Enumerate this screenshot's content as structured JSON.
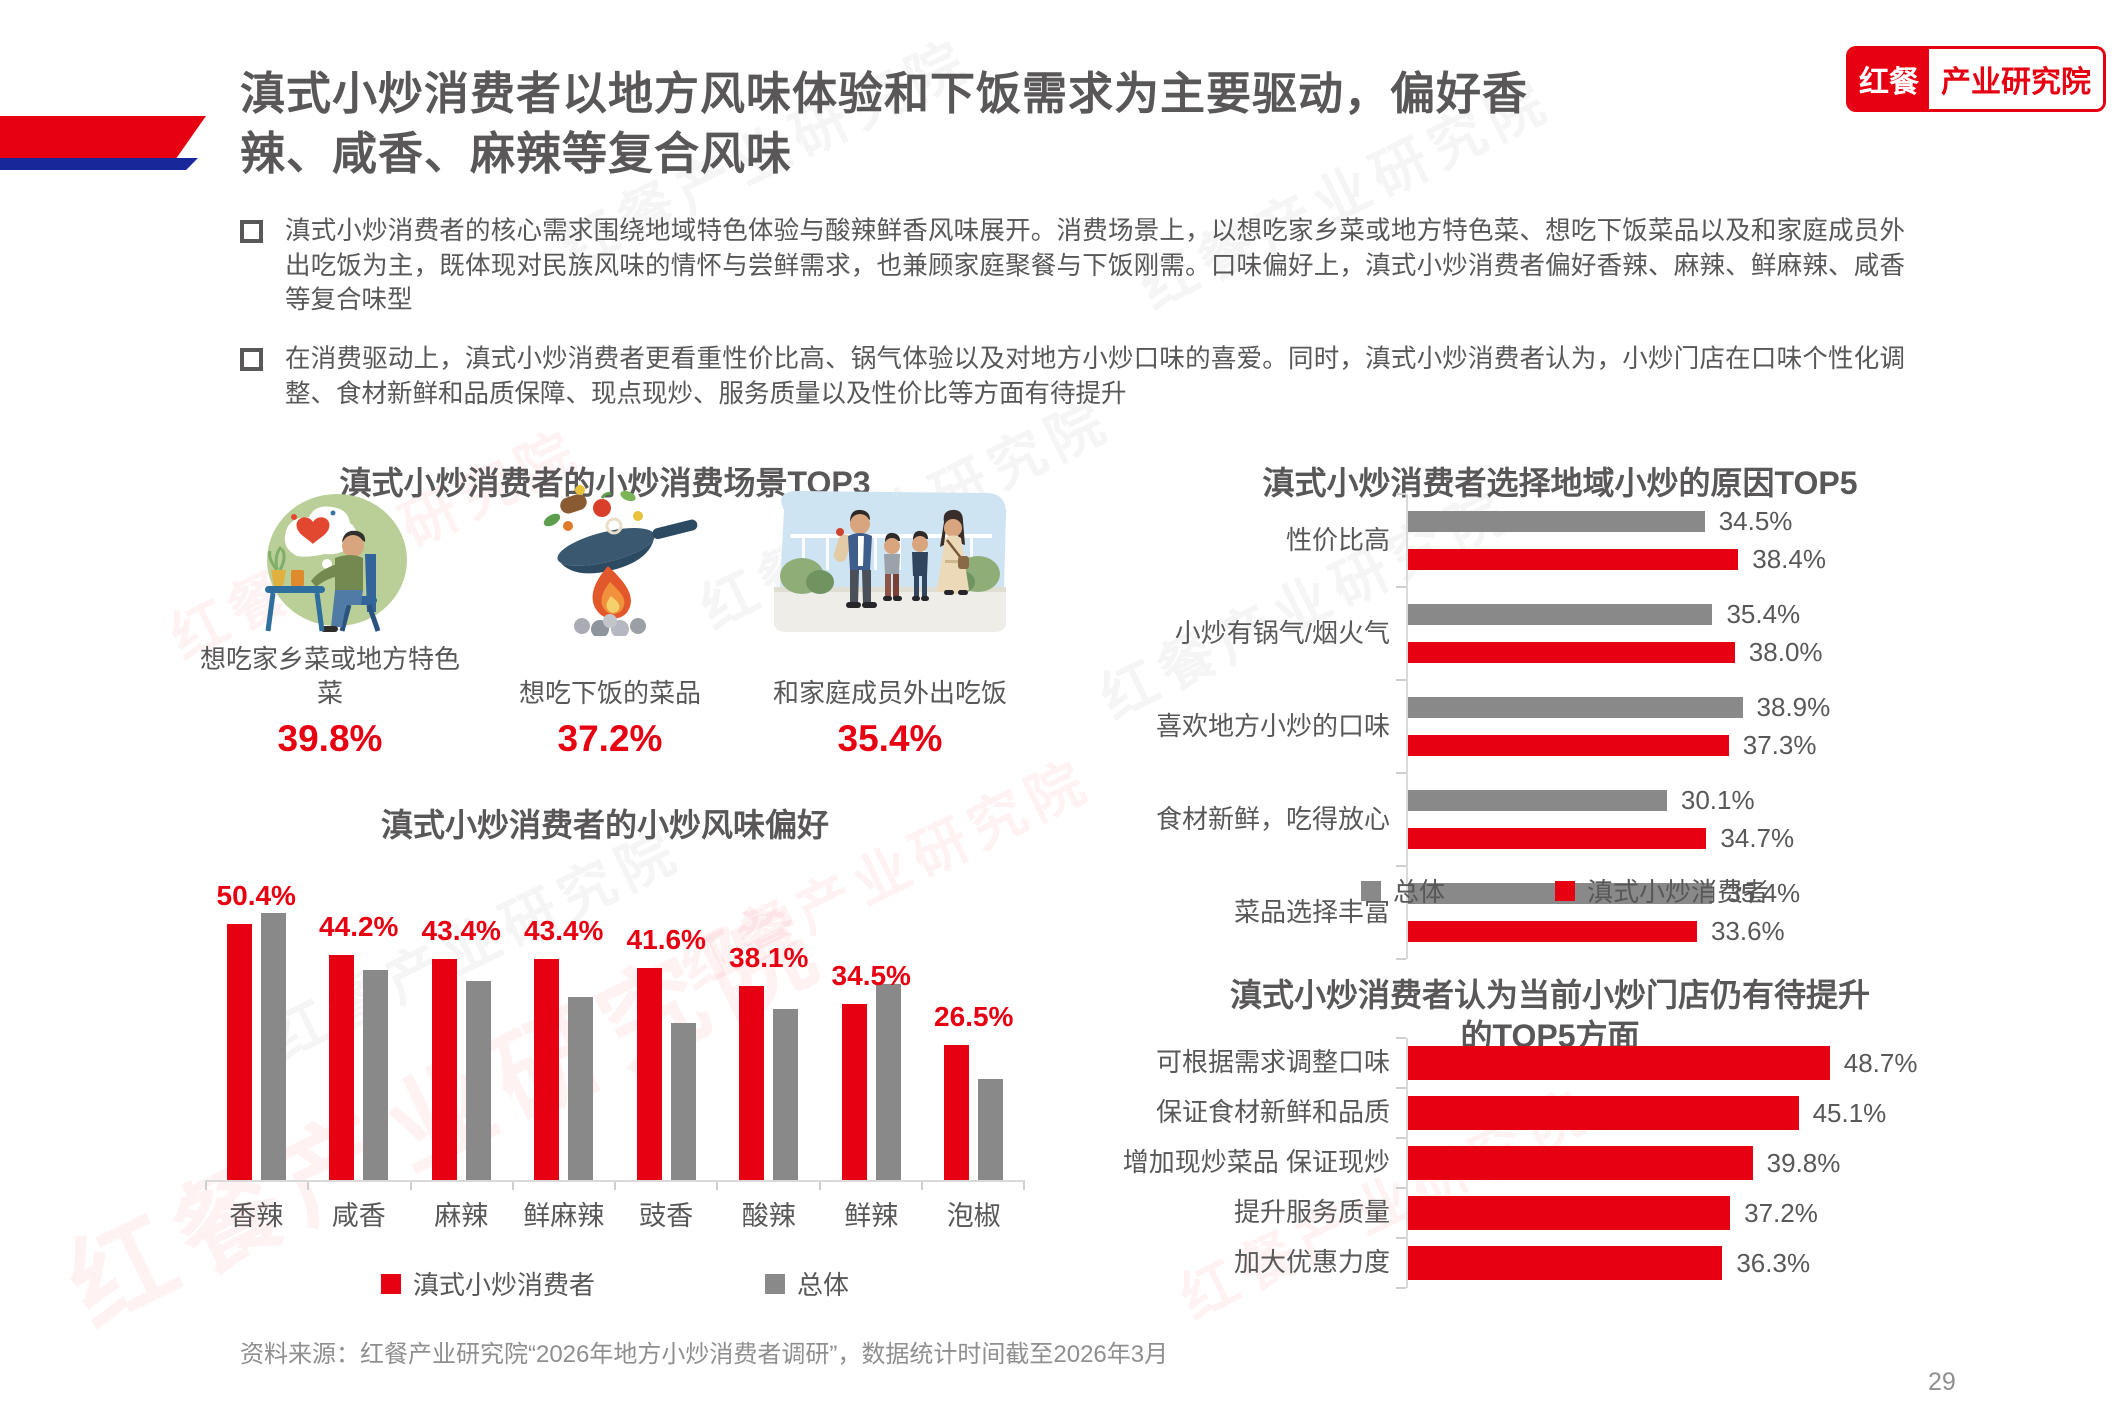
{
  "page": {
    "background": "#ffffff",
    "page_number": "29"
  },
  "header": {
    "title": "滇式小炒消费者以地方风味体验和下饭需求为主要驱动，偏好香辣、咸香、麻辣等复合风味"
  },
  "logo": {
    "brand": "红餐",
    "unit": "产业研究院"
  },
  "bullets": [
    "滇式小炒消费者的核心需求围绕地域特色体验与酸辣鲜香风味展开。消费场景上，以想吃家乡菜或地方特色菜、想吃下饭菜品以及和家庭成员外出吃饭为主，既体现对民族风味的情怀与尝鲜需求，也兼顾家庭聚餐与下饭刚需。口味偏好上，滇式小炒消费者偏好香辣、麻辣、鲜麻辣、咸香等复合味型",
    "在消费驱动上，滇式小炒消费者更看重性价比高、锅气体验以及对地方小炒口味的喜爱。同时，滇式小炒消费者认为，小炒门店在口味个性化调整、食材新鲜和品质保障、现点现炒、服务质量以及性价比等方面有待提升"
  ],
  "scenes": {
    "title": "滇式小炒消费者的小炒消费场景TOP3",
    "items": [
      {
        "icon": "person-missing-hometown-food-illustration",
        "label": "想吃家乡菜或地方特色菜",
        "value": "39.8%"
      },
      {
        "icon": "wok-over-fire-illustration",
        "label": "想吃下饭的菜品",
        "value": "37.2%"
      },
      {
        "icon": "family-dining-out-illustration",
        "label": "和家庭成员外出吃饭",
        "value": "35.4%"
      }
    ]
  },
  "colors": {
    "accent_red": "#E60012",
    "bar_gray": "#898989",
    "accent_blue": "#18289B",
    "text_dark": "#595757",
    "text_muted": "#8F8F8F"
  },
  "watermark": "红餐产业研究院",
  "footer": {
    "source": "资料来源：红餐产业研究院“2026年地方小炒消费者调研”，数据统计时间截至2026年3月"
  },
  "chart_data": [
    {
      "type": "bar",
      "orientation": "horizontal",
      "title": "滇式小炒消费者选择地域小炒的原因TOP5",
      "categories": [
        "性价比高",
        "小炒有锅气/烟火气",
        "喜欢地方小炒的口味",
        "食材新鲜，吃得放心",
        "菜品选择丰富"
      ],
      "series": [
        {
          "name": "总体",
          "color": "#898989",
          "values": [
            34.5,
            35.4,
            38.9,
            30.1,
            35.4
          ],
          "data_labels": true
        },
        {
          "name": "滇式小炒消费者",
          "color": "#E60012",
          "values": [
            38.4,
            38.0,
            37.3,
            34.7,
            33.6
          ],
          "data_labels": true
        }
      ],
      "value_suffix": "%",
      "xlim": [
        0,
        45
      ],
      "legend_position": "bottom",
      "grid": false
    },
    {
      "type": "bar",
      "orientation": "vertical",
      "title": "滇式小炒消费者的小炒风味偏好",
      "categories": [
        "香辣",
        "咸香",
        "麻辣",
        "鲜麻辣",
        "豉香",
        "酸辣",
        "鲜辣",
        "泡椒"
      ],
      "series": [
        {
          "name": "滇式小炒消费者",
          "color": "#E60012",
          "values": [
            50.4,
            44.2,
            43.4,
            43.4,
            41.6,
            38.1,
            34.5,
            26.5
          ],
          "data_labels": true
        },
        {
          "name": "总体",
          "color": "#898989",
          "values": [
            52.4,
            41.2,
            39.1,
            36.0,
            30.9,
            33.6,
            38.5,
            19.8
          ],
          "data_labels": false
        }
      ],
      "value_suffix": "%",
      "ylim": [
        0,
        57
      ],
      "legend_position": "bottom",
      "grid": false
    },
    {
      "type": "bar",
      "orientation": "horizontal",
      "title": "滇式小炒消费者认为当前小炒门店仍有待提升的TOP5方面",
      "categories": [
        "可根据需求调整口味",
        "保证食材新鲜和品质",
        "增加现炒菜品 保证现炒",
        "提升服务质量",
        "加大优惠力度"
      ],
      "series": [
        {
          "name": "滇式小炒消费者",
          "color": "#E60012",
          "values": [
            48.7,
            45.1,
            39.8,
            37.2,
            36.3
          ],
          "data_labels": true
        }
      ],
      "value_suffix": "%",
      "xlim": [
        0,
        55
      ],
      "grid": false
    }
  ]
}
